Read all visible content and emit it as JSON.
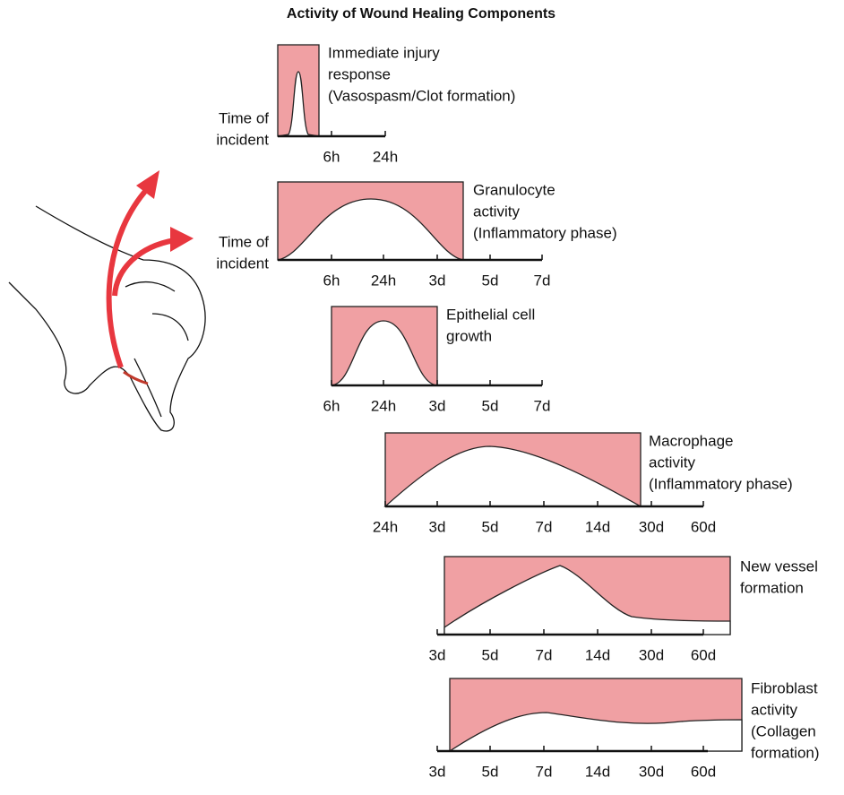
{
  "title": "Activity of Wound Healing Components",
  "panels": [
    {
      "label": [
        "Immediate injury",
        "response",
        "(Vasospasm/Clot formation)"
      ],
      "start_label": [
        "Time of",
        "incident"
      ],
      "ticks": [
        "6h",
        "24h"
      ]
    },
    {
      "label": [
        "Granulocyte",
        "activity",
        "(Inflammatory phase)"
      ],
      "start_label": [
        "Time of",
        "incident"
      ],
      "ticks": [
        "6h",
        "24h",
        "3d",
        "5d",
        "7d"
      ]
    },
    {
      "label": [
        "Epithelial cell",
        "growth"
      ],
      "ticks": [
        "6h",
        "24h",
        "3d",
        "5d",
        "7d"
      ]
    },
    {
      "label": [
        "Macrophage",
        "activity",
        "(Inflammatory phase)"
      ],
      "ticks": [
        "24h",
        "3d",
        "5d",
        "7d",
        "14d",
        "30d",
        "60d"
      ]
    },
    {
      "label": [
        "New vessel",
        "formation"
      ],
      "ticks": [
        "3d",
        "5d",
        "7d",
        "14d",
        "30d",
        "60d"
      ]
    },
    {
      "label": [
        "Fibroblast",
        "activity",
        "(Collagen",
        "formation)"
      ],
      "ticks": [
        "3d",
        "5d",
        "7d",
        "14d",
        "30d",
        "60d"
      ]
    }
  ]
}
